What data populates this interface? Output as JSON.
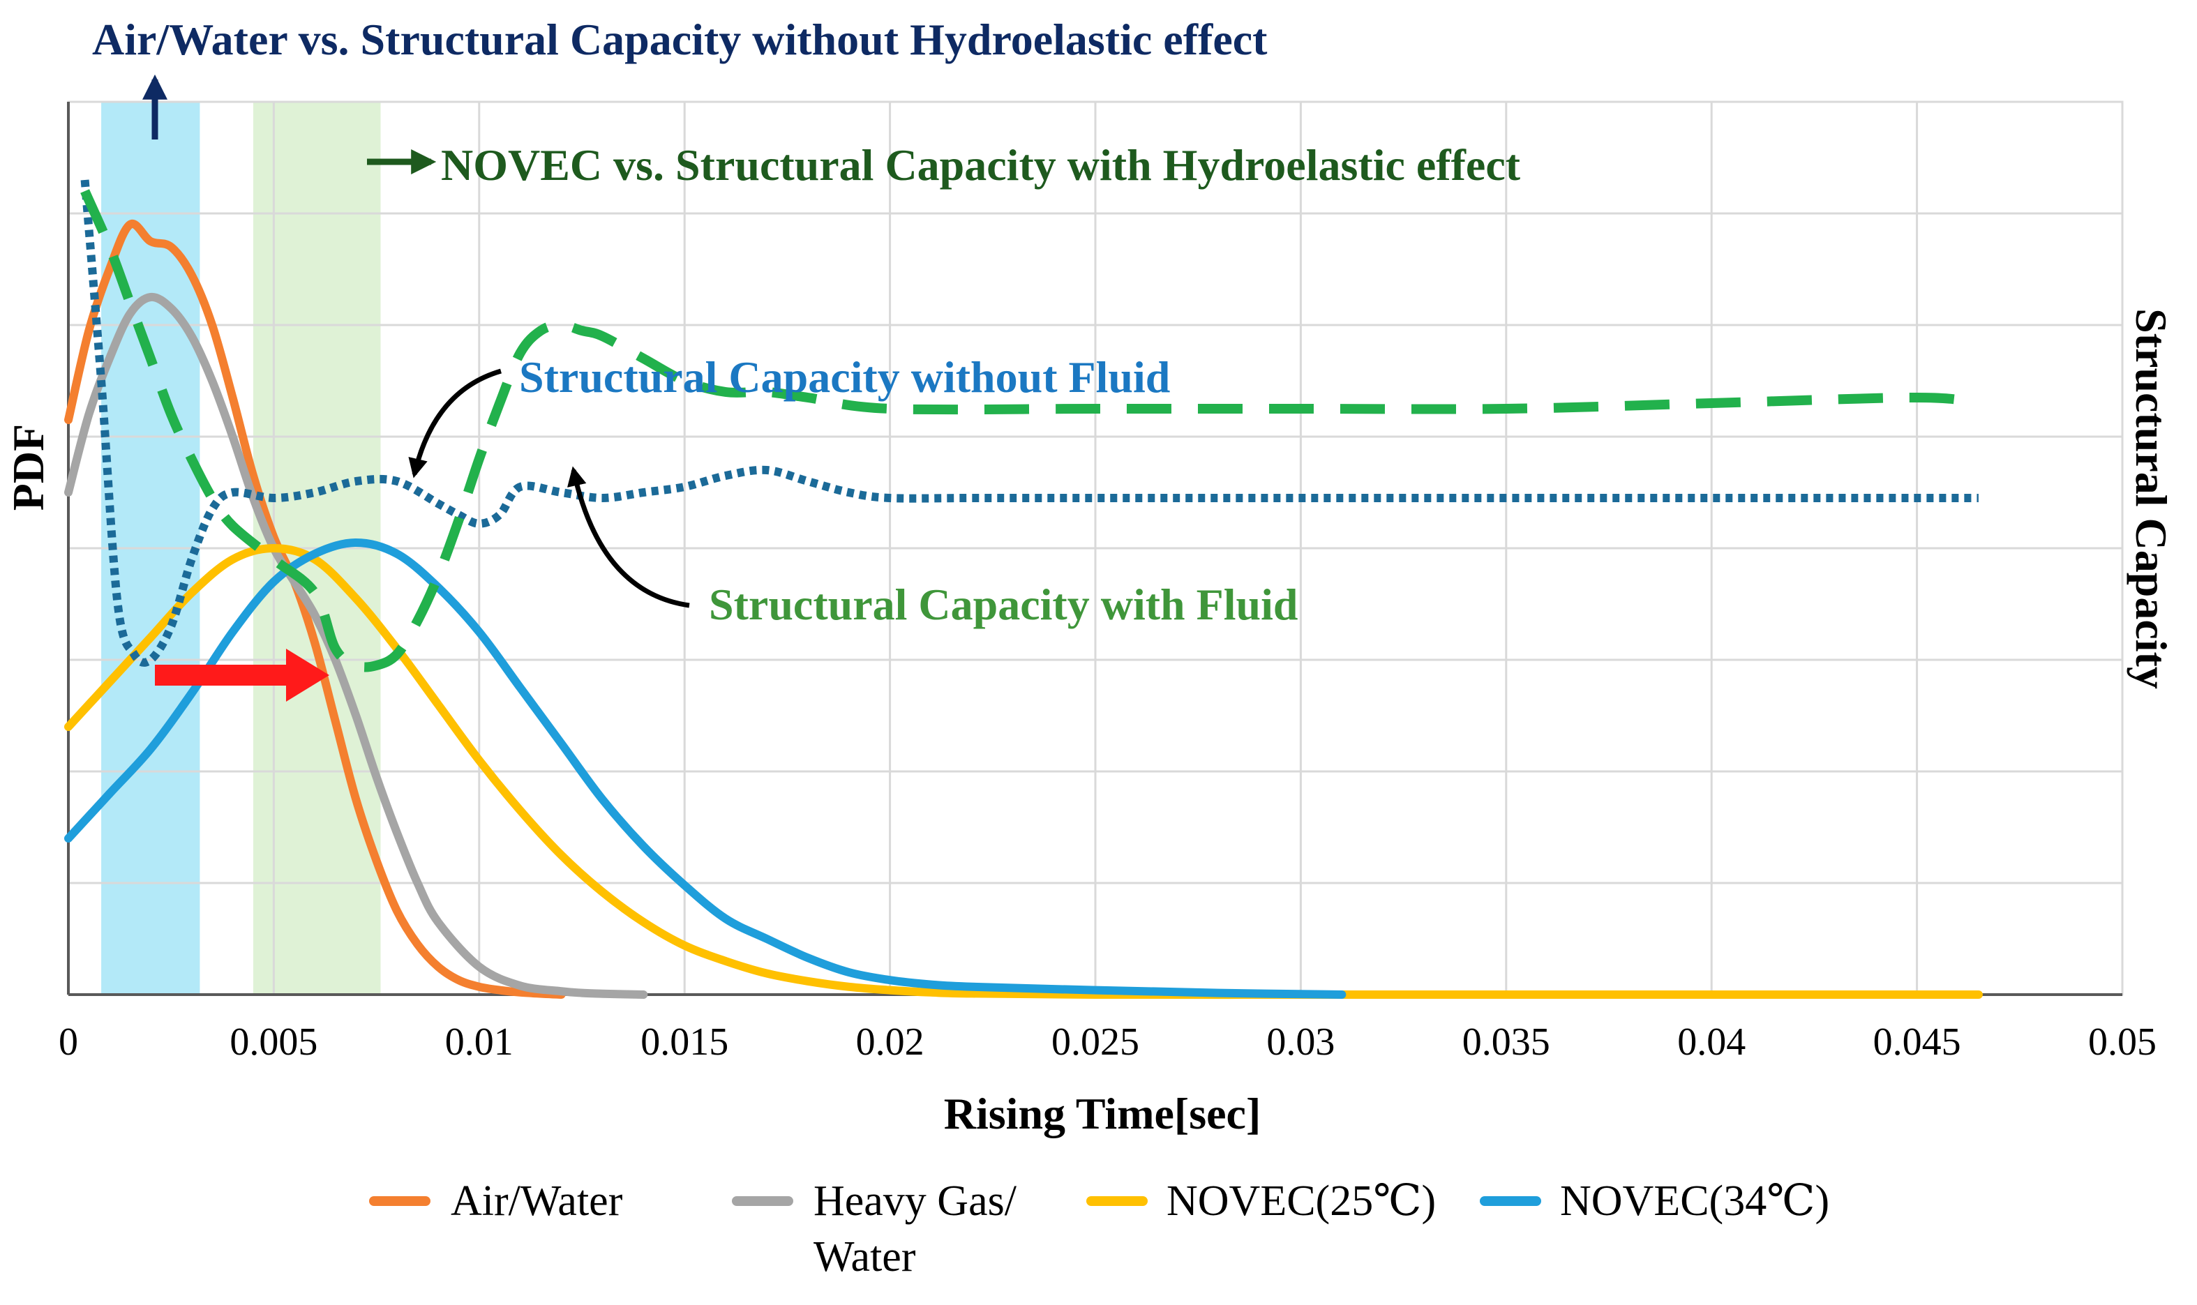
{
  "chart_data": {
    "type": "line",
    "title": "Air/Water vs. Structural Capacity without Hydroelastic effect",
    "xlabel": "Rising Time[sec]",
    "ylabel": "PDF",
    "y2label": "Structural Capacity",
    "xlim": [
      0,
      0.05
    ],
    "ylim": [
      0,
      8
    ],
    "xticks": [
      0,
      0.005,
      0.01,
      0.015,
      0.02,
      0.025,
      0.03,
      0.035,
      0.04,
      0.045,
      0.05
    ],
    "xtick_labels": [
      "0",
      "0.005",
      "0.01",
      "0.015",
      "0.02",
      "0.025",
      "0.03",
      "0.035",
      "0.04",
      "0.045",
      "0.05"
    ],
    "grid": true,
    "legend_position": "bottom",
    "legend": [
      "Air/Water",
      "Heavy Gas/ Water",
      "NOVEC(25℃)",
      "NOVEC(34℃)"
    ],
    "highlight_bands": [
      {
        "name": "air-water-band",
        "x0": 0.0008,
        "x1": 0.0032,
        "color": "#b3e9f8"
      },
      {
        "name": "novec-band",
        "x0": 0.0045,
        "x1": 0.0076,
        "color": "#dff2d6"
      }
    ],
    "series": [
      {
        "name": "Air/Water",
        "color": "#f47f2f",
        "style": "solid",
        "x": [
          0,
          0.0005,
          0.001,
          0.0015,
          0.002,
          0.0025,
          0.003,
          0.0035,
          0.004,
          0.0045,
          0.005,
          0.0055,
          0.006,
          0.0065,
          0.007,
          0.0075,
          0.008,
          0.0085,
          0.009,
          0.0095,
          0.01,
          0.0105,
          0.011,
          0.012
        ],
        "values": [
          5.15,
          5.95,
          6.5,
          6.9,
          6.75,
          6.7,
          6.45,
          6.0,
          5.35,
          4.65,
          4.1,
          3.7,
          3.15,
          2.45,
          1.75,
          1.2,
          0.75,
          0.45,
          0.25,
          0.13,
          0.07,
          0.04,
          0.02,
          0.0
        ]
      },
      {
        "name": "Heavy Gas/ Water",
        "color": "#a5a5a5",
        "style": "solid",
        "x": [
          0,
          0.0005,
          0.001,
          0.0015,
          0.002,
          0.0025,
          0.003,
          0.0035,
          0.004,
          0.0045,
          0.005,
          0.0055,
          0.006,
          0.0065,
          0.007,
          0.0075,
          0.008,
          0.0085,
          0.009,
          0.01,
          0.011,
          0.012,
          0.0125,
          0.013,
          0.014
        ],
        "values": [
          4.5,
          5.2,
          5.7,
          6.1,
          6.25,
          6.15,
          5.9,
          5.5,
          5.0,
          4.45,
          4.0,
          3.7,
          3.4,
          3.0,
          2.5,
          1.95,
          1.45,
          1.0,
          0.65,
          0.25,
          0.08,
          0.03,
          0.015,
          0.008,
          0.0
        ]
      },
      {
        "name": "NOVEC(25℃)",
        "color": "#ffc000",
        "style": "solid",
        "x": [
          0,
          0.001,
          0.002,
          0.003,
          0.004,
          0.005,
          0.006,
          0.007,
          0.008,
          0.009,
          0.01,
          0.011,
          0.012,
          0.013,
          0.014,
          0.015,
          0.016,
          0.017,
          0.018,
          0.019,
          0.02,
          0.021,
          0.022,
          0.025,
          0.03,
          0.035,
          0.04,
          0.0465
        ],
        "values": [
          2.4,
          2.8,
          3.2,
          3.6,
          3.9,
          4.0,
          3.9,
          3.55,
          3.1,
          2.6,
          2.1,
          1.65,
          1.25,
          0.92,
          0.65,
          0.44,
          0.3,
          0.19,
          0.12,
          0.07,
          0.04,
          0.02,
          0.01,
          0.0,
          0.0,
          0.0,
          0.0,
          0.0
        ]
      },
      {
        "name": "NOVEC(34℃)",
        "color": "#1f9edb",
        "style": "solid",
        "x": [
          0,
          0.001,
          0.002,
          0.003,
          0.004,
          0.005,
          0.006,
          0.007,
          0.008,
          0.009,
          0.01,
          0.011,
          0.012,
          0.013,
          0.014,
          0.015,
          0.016,
          0.017,
          0.018,
          0.019,
          0.02,
          0.021,
          0.022,
          0.025,
          0.028,
          0.031
        ],
        "values": [
          1.4,
          1.8,
          2.2,
          2.7,
          3.25,
          3.7,
          3.95,
          4.05,
          3.95,
          3.65,
          3.25,
          2.75,
          2.25,
          1.75,
          1.33,
          0.98,
          0.68,
          0.5,
          0.33,
          0.2,
          0.13,
          0.09,
          0.07,
          0.04,
          0.015,
          0.0
        ]
      },
      {
        "name": "Structural Capacity without Fluid",
        "color": "#1b6a98",
        "style": "dotted",
        "x": [
          0.0004,
          0.0008,
          0.0012,
          0.0016,
          0.002,
          0.0025,
          0.003,
          0.0035,
          0.004,
          0.005,
          0.006,
          0.007,
          0.008,
          0.009,
          0.0095,
          0.01,
          0.0105,
          0.011,
          0.012,
          0.013,
          0.014,
          0.015,
          0.016,
          0.017,
          0.018,
          0.019,
          0.02,
          0.022,
          0.025,
          0.03,
          0.035,
          0.04,
          0.0465
        ],
        "values": [
          7.3,
          5.5,
          3.5,
          3.05,
          3.0,
          3.3,
          3.9,
          4.35,
          4.5,
          4.45,
          4.5,
          4.6,
          4.6,
          4.4,
          4.3,
          4.22,
          4.3,
          4.55,
          4.5,
          4.45,
          4.5,
          4.55,
          4.65,
          4.7,
          4.6,
          4.5,
          4.45,
          4.45,
          4.45,
          4.45,
          4.45,
          4.45,
          4.45
        ]
      },
      {
        "name": "Structural Capacity with Fluid",
        "color": "#22b14c",
        "style": "dashed",
        "x": [
          0.0004,
          0.001,
          0.0015,
          0.002,
          0.0025,
          0.003,
          0.0035,
          0.004,
          0.005,
          0.006,
          0.0065,
          0.007,
          0.0075,
          0.008,
          0.0085,
          0.009,
          0.0095,
          0.01,
          0.0105,
          0.011,
          0.0115,
          0.012,
          0.0125,
          0.013,
          0.014,
          0.015,
          0.016,
          0.017,
          0.018,
          0.02,
          0.025,
          0.03,
          0.035,
          0.04,
          0.045,
          0.0465
        ],
        "values": [
          7.2,
          6.7,
          6.2,
          5.7,
          5.2,
          4.8,
          4.45,
          4.2,
          3.9,
          3.6,
          3.1,
          2.95,
          2.95,
          3.05,
          3.35,
          3.75,
          4.25,
          4.8,
          5.3,
          5.75,
          5.95,
          6.0,
          5.95,
          5.9,
          5.7,
          5.5,
          5.4,
          5.4,
          5.35,
          5.25,
          5.25,
          5.25,
          5.25,
          5.3,
          5.35,
          5.3
        ]
      }
    ],
    "annotations": [
      {
        "name": "annotation-hydroelastic-novec",
        "text": "NOVEC vs. Structural Capacity with Hydroelastic effect",
        "color": "#1e5a1e"
      },
      {
        "name": "annotation-capacity-without-fluid",
        "text": "Structural Capacity without Fluid",
        "color": "#1b78c2"
      },
      {
        "name": "annotation-capacity-with-fluid",
        "text": "Structural Capacity with Fluid",
        "color": "#3f963a"
      }
    ]
  },
  "colors": {
    "title": "#0e2a63",
    "grid": "#d9d9d9",
    "axis": "#595959",
    "shift_arrow": "#ff1a1a",
    "pointer_arrow": "#000000"
  }
}
